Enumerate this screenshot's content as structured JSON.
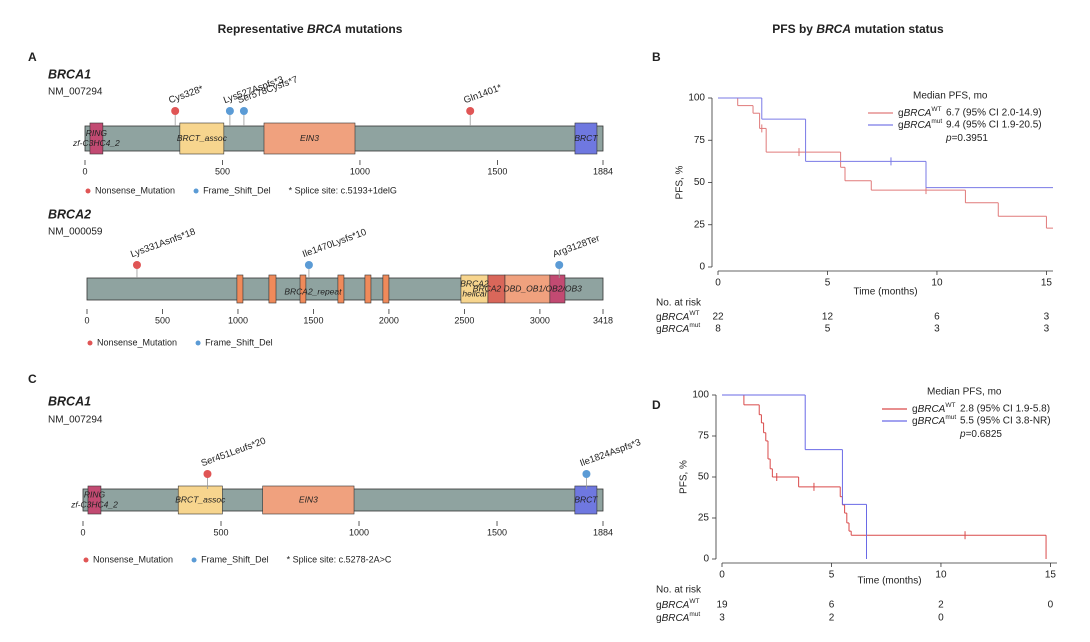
{
  "headers": {
    "left": {
      "pre": "Representative",
      "gene": "BRCA",
      "post": "mutations"
    },
    "right": {
      "pre": "PFS by",
      "gene": "BRCA",
      "post": "mutation status"
    }
  },
  "chart_data": [
    {
      "type": "lollipop",
      "panel": "A",
      "gene": "BRCA1",
      "transcript": "NM_007294",
      "xlim": [
        0,
        1884
      ],
      "xticks": [
        0,
        500,
        1000,
        1500,
        1884
      ],
      "bar_color": "#8fa3a0",
      "domains": [
        {
          "name": [
            "RING",
            "zf-C3HC4_2"
          ],
          "start": 18,
          "end": 65,
          "color": "#c24a72"
        },
        {
          "name": [
            "BRCT_assoc"
          ],
          "start": 345,
          "end": 505,
          "color": "#f7d58e"
        },
        {
          "name": [
            "EIN3"
          ],
          "start": 651,
          "end": 982,
          "color": "#f0a17e"
        },
        {
          "name": [
            "BRCT"
          ],
          "start": 1782,
          "end": 1862,
          "color": "#6f78e0"
        }
      ],
      "mutations": [
        {
          "label": "Cys328*",
          "x": 328,
          "class": "Nonsense_Mutation"
        },
        {
          "label": "Lys527Aspfs*3",
          "x": 527,
          "class": "Frame_Shift_Del"
        },
        {
          "label": "Ser578Cysfs*7",
          "x": 578,
          "class": "Frame_Shift_Del"
        },
        {
          "label": "Gln1401*",
          "x": 1401,
          "class": "Nonsense_Mutation"
        }
      ],
      "legend": [
        {
          "name": "Nonsense_Mutation",
          "color": "#e05555"
        },
        {
          "name": "Frame_Shift_Del",
          "color": "#5b9bd5"
        }
      ],
      "note": "* Splice site: c.5193+1delG"
    },
    {
      "type": "lollipop",
      "gene": "BRCA2",
      "transcript": "NM_000059",
      "xlim": [
        0,
        3418
      ],
      "xticks": [
        0,
        500,
        1000,
        1500,
        2000,
        2500,
        3000,
        3418
      ],
      "bar_color": "#8fa3a0",
      "repeats": {
        "name": "BRCA2_repeat",
        "color": "#f08a5a",
        "regions": [
          [
            993,
            1033
          ],
          [
            1205,
            1252
          ],
          [
            1411,
            1450
          ],
          [
            1662,
            1702
          ],
          [
            1841,
            1881
          ],
          [
            1960,
            2000
          ]
        ]
      },
      "domains": [
        {
          "name": [
            "BRCA2",
            "helical"
          ],
          "start": 2477,
          "end": 2656,
          "color": "#f7d58e"
        },
        {
          "name": [
            "BRCA2 DBD_OB1/OB2/OB3"
          ],
          "start": 2768,
          "end": 3066,
          "color": "#f0a17e"
        },
        {
          "start": 2656,
          "end": 2768,
          "color": "#d9675a"
        },
        {
          "start": 3066,
          "end": 3166,
          "color": "#c24a72"
        }
      ],
      "mutations": [
        {
          "label": "Lys331Asnfs*18",
          "x": 331,
          "class": "Nonsense_Mutation"
        },
        {
          "label": "Ile1470Lysfs*10",
          "x": 1470,
          "class": "Frame_Shift_Del"
        },
        {
          "label": "Arg3128Ter",
          "x": 3128,
          "class": "Frame_Shift_Del"
        }
      ],
      "legend": [
        {
          "name": "Nonsense_Mutation",
          "color": "#e05555"
        },
        {
          "name": "Frame_Shift_Del",
          "color": "#5b9bd5"
        }
      ]
    },
    {
      "type": "km",
      "panel": "B",
      "xlim": [
        0,
        15.3
      ],
      "ylim": [
        0,
        100
      ],
      "xticks": [
        0,
        5,
        10,
        15
      ],
      "yticks": [
        0,
        25,
        50,
        75,
        100
      ],
      "xlabel": "Time (months)",
      "ylabel": "PFS, %",
      "legend_title": "Median PFS, mo",
      "pvalue": {
        "p": "p",
        "rest": "=0.3951"
      },
      "risk_title": "No. at risk",
      "series": [
        {
          "name": {
            "prefix": "g",
            "gene": "BRCA",
            "sup": "WT"
          },
          "color": "#e07a7a",
          "x": [
            0,
            0.9,
            1.6,
            1.9,
            2.2,
            5.6,
            5.8,
            7.0,
            11.3,
            12.8,
            15.0,
            15.3
          ],
          "values": [
            100,
            95.5,
            91,
            82,
            68,
            59,
            51,
            45.5,
            38,
            30,
            23,
            23
          ],
          "censor_x": [
            2.0,
            3.7,
            9.5
          ],
          "censor_values": [
            82,
            68,
            45.5
          ],
          "median": "6.7 (95% CI 2.0-14.9)",
          "at_risk": [
            22,
            12,
            6,
            3
          ]
        },
        {
          "name": {
            "prefix": "g",
            "gene": "BRCA",
            "sup": "mut"
          },
          "color": "#7a7ae6",
          "x": [
            0,
            2.0,
            4.0,
            9.5,
            15.3
          ],
          "values": [
            100,
            87.5,
            62.5,
            47,
            47
          ],
          "censor_x": [
            7.9
          ],
          "censor_values": [
            62.5
          ],
          "median": "9.4 (95% CI 1.9-20.5)",
          "at_risk": [
            8,
            5,
            3,
            3
          ]
        }
      ]
    },
    {
      "type": "lollipop",
      "panel": "C",
      "gene": "BRCA1",
      "transcript": "NM_007294",
      "xlim": [
        0,
        1884
      ],
      "xticks": [
        0,
        500,
        1000,
        1500,
        1884
      ],
      "bar_color": "#8fa3a0",
      "domains": [
        {
          "name": [
            "RING",
            "zf-C3HC4_2"
          ],
          "start": 18,
          "end": 65,
          "color": "#c24a72"
        },
        {
          "name": [
            "BRCT_assoc"
          ],
          "start": 345,
          "end": 505,
          "color": "#f7d58e"
        },
        {
          "name": [
            "EIN3"
          ],
          "start": 651,
          "end": 982,
          "color": "#f0a17e"
        },
        {
          "name": [
            "BRCT"
          ],
          "start": 1782,
          "end": 1862,
          "color": "#6f78e0"
        }
      ],
      "mutations": [
        {
          "label": "Ser451Leufs*20",
          "x": 451,
          "class": "Nonsense_Mutation"
        },
        {
          "label": "Ile1824Aspfs*3",
          "x": 1824,
          "class": "Frame_Shift_Del"
        }
      ],
      "legend": [
        {
          "name": "Nonsense_Mutation",
          "color": "#e05555"
        },
        {
          "name": "Frame_Shift_Del",
          "color": "#5b9bd5"
        }
      ],
      "note": "* Splice site: c.5278-2A>C"
    },
    {
      "type": "km",
      "panel": "D",
      "xlim": [
        0,
        15.3
      ],
      "ylim": [
        0,
        100
      ],
      "xticks": [
        0,
        5,
        10,
        15
      ],
      "yticks": [
        0,
        25,
        50,
        75,
        100
      ],
      "xlabel": "Time (months)",
      "ylabel": "PFS, %",
      "legend_title": "Median PFS, mo",
      "pvalue": {
        "p": "p",
        "rest": "=0.6825"
      },
      "risk_title": "No. at risk",
      "series": [
        {
          "name": {
            "prefix": "g",
            "gene": "BRCA",
            "sup": "WT"
          },
          "color": "#d94a4a",
          "x": [
            0,
            1.0,
            1.7,
            1.8,
            1.9,
            2.0,
            2.1,
            2.2,
            2.3,
            3.5,
            5.4,
            5.5,
            5.6,
            5.7,
            5.8,
            5.9,
            14.8
          ],
          "values": [
            100,
            94,
            88,
            83,
            77,
            72,
            61,
            55,
            50,
            44,
            38,
            33,
            28,
            22,
            17,
            14.5,
            0
          ],
          "censor_x": [
            2.5,
            4.2,
            11.1
          ],
          "censor_values": [
            50,
            44,
            14.5
          ],
          "median": "2.8 (95% CI 1.9-5.8)",
          "at_risk": [
            19,
            6,
            2,
            0
          ]
        },
        {
          "name": {
            "prefix": "g",
            "gene": "BRCA",
            "sup": "mut"
          },
          "color": "#6a6ae6",
          "x": [
            0,
            3.8,
            5.5,
            6.6
          ],
          "values": [
            100,
            66.7,
            33.3,
            0
          ],
          "censor_x": [],
          "censor_values": [],
          "median": "5.5 (95% CI 3.8-NR)",
          "at_risk": [
            3,
            2,
            0,
            null
          ]
        }
      ]
    }
  ]
}
